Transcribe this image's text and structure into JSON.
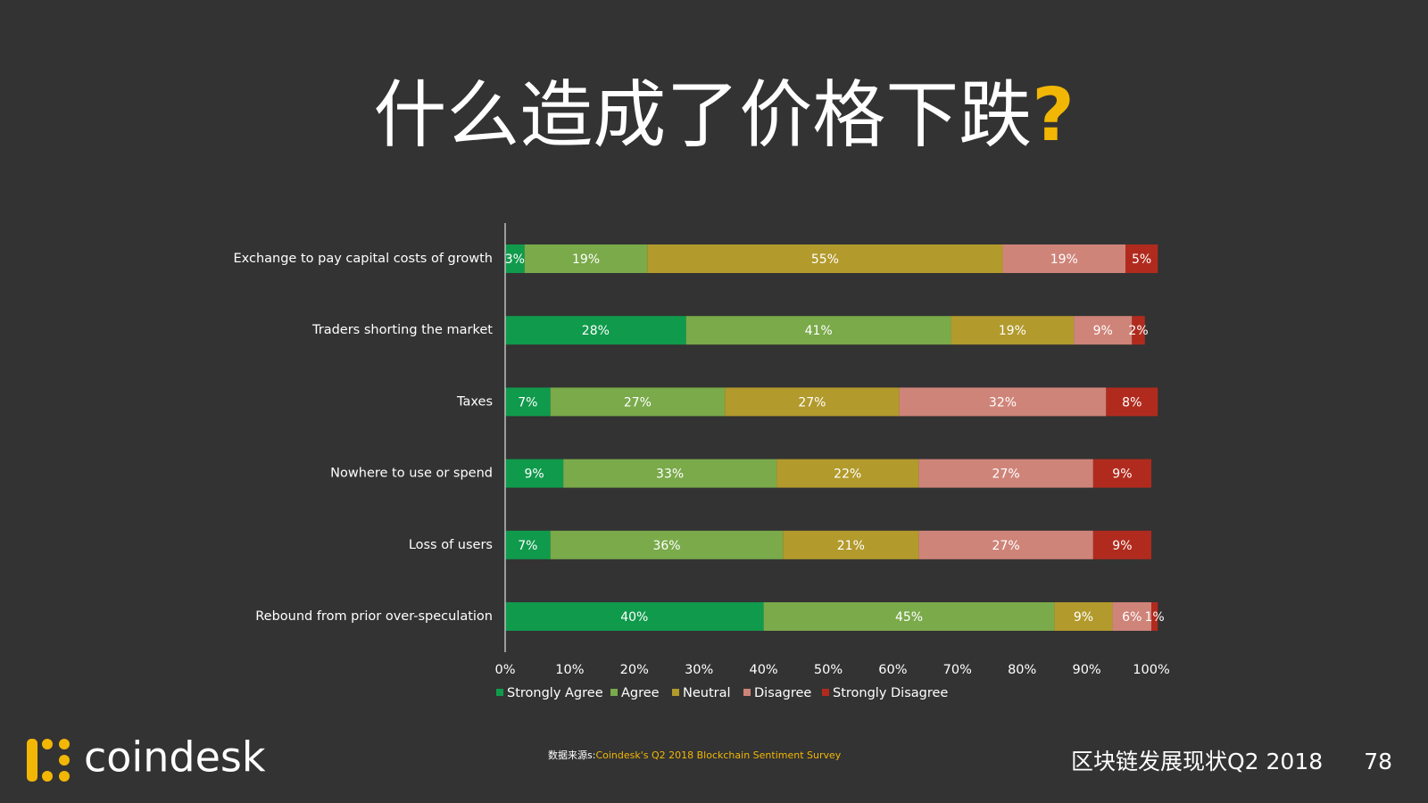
{
  "slide": {
    "title": "什么造成了价格下跌",
    "title_mark": "?"
  },
  "chart_data": {
    "type": "stacked_bar_horizontal",
    "categories": [
      "Exchange to pay capital costs of growth",
      "Traders shorting the market",
      "Taxes",
      "Nowhere to use or spend",
      "Loss of users",
      "Rebound from prior over-speculation"
    ],
    "series": [
      {
        "name": "Strongly Agree",
        "color": "#109a4c",
        "values": [
          3,
          28,
          7,
          9,
          7,
          40
        ],
        "value_labels": [
          "3%",
          "28%",
          "7%",
          "9%",
          "7%",
          "40%"
        ]
      },
      {
        "name": "Agree",
        "color": "#7aaa4a",
        "values": [
          19,
          41,
          27,
          33,
          36,
          45
        ],
        "value_labels": [
          "19%",
          "41%",
          "27%",
          "33%",
          "36%",
          "45%"
        ]
      },
      {
        "name": "Neutral",
        "color": "#b29a2c",
        "values": [
          55,
          19,
          27,
          22,
          21,
          9
        ],
        "value_labels": [
          "55%",
          "19%",
          "27%",
          "22%",
          "21%",
          "9%"
        ]
      },
      {
        "name": "Disagree",
        "color": "#cf8479",
        "values": [
          19,
          9,
          32,
          27,
          27,
          6
        ],
        "value_labels": [
          "19%",
          "9%",
          "32%",
          "27%",
          "27%",
          "6%"
        ]
      },
      {
        "name": "Strongly Disagree",
        "color": "#b02b1e",
        "values": [
          5,
          2,
          8,
          9,
          9,
          1
        ],
        "value_labels": [
          "5%",
          "2%",
          "8%",
          "9%",
          "9%",
          "1%"
        ]
      }
    ],
    "xlim": [
      0,
      100
    ],
    "xticks": [
      {
        "value": 0,
        "label": "0%"
      },
      {
        "value": 10,
        "label": "10%"
      },
      {
        "value": 20,
        "label": "20%"
      },
      {
        "value": 30,
        "label": "30%"
      },
      {
        "value": 40,
        "label": "40%"
      },
      {
        "value": 50,
        "label": "50%"
      },
      {
        "value": 60,
        "label": "60%"
      },
      {
        "value": 70,
        "label": "70%"
      },
      {
        "value": 80,
        "label": "80%"
      },
      {
        "value": 90,
        "label": "90%"
      },
      {
        "value": 100,
        "label": "100%"
      }
    ],
    "legend": "bottom"
  },
  "footer": {
    "logo": "coindesk",
    "source_label": "数据来源s:",
    "source": "Coindesk's Q2 2018 Blockchain Sentiment Survey",
    "report": "区块链发展现状Q2 2018",
    "page": "78"
  }
}
